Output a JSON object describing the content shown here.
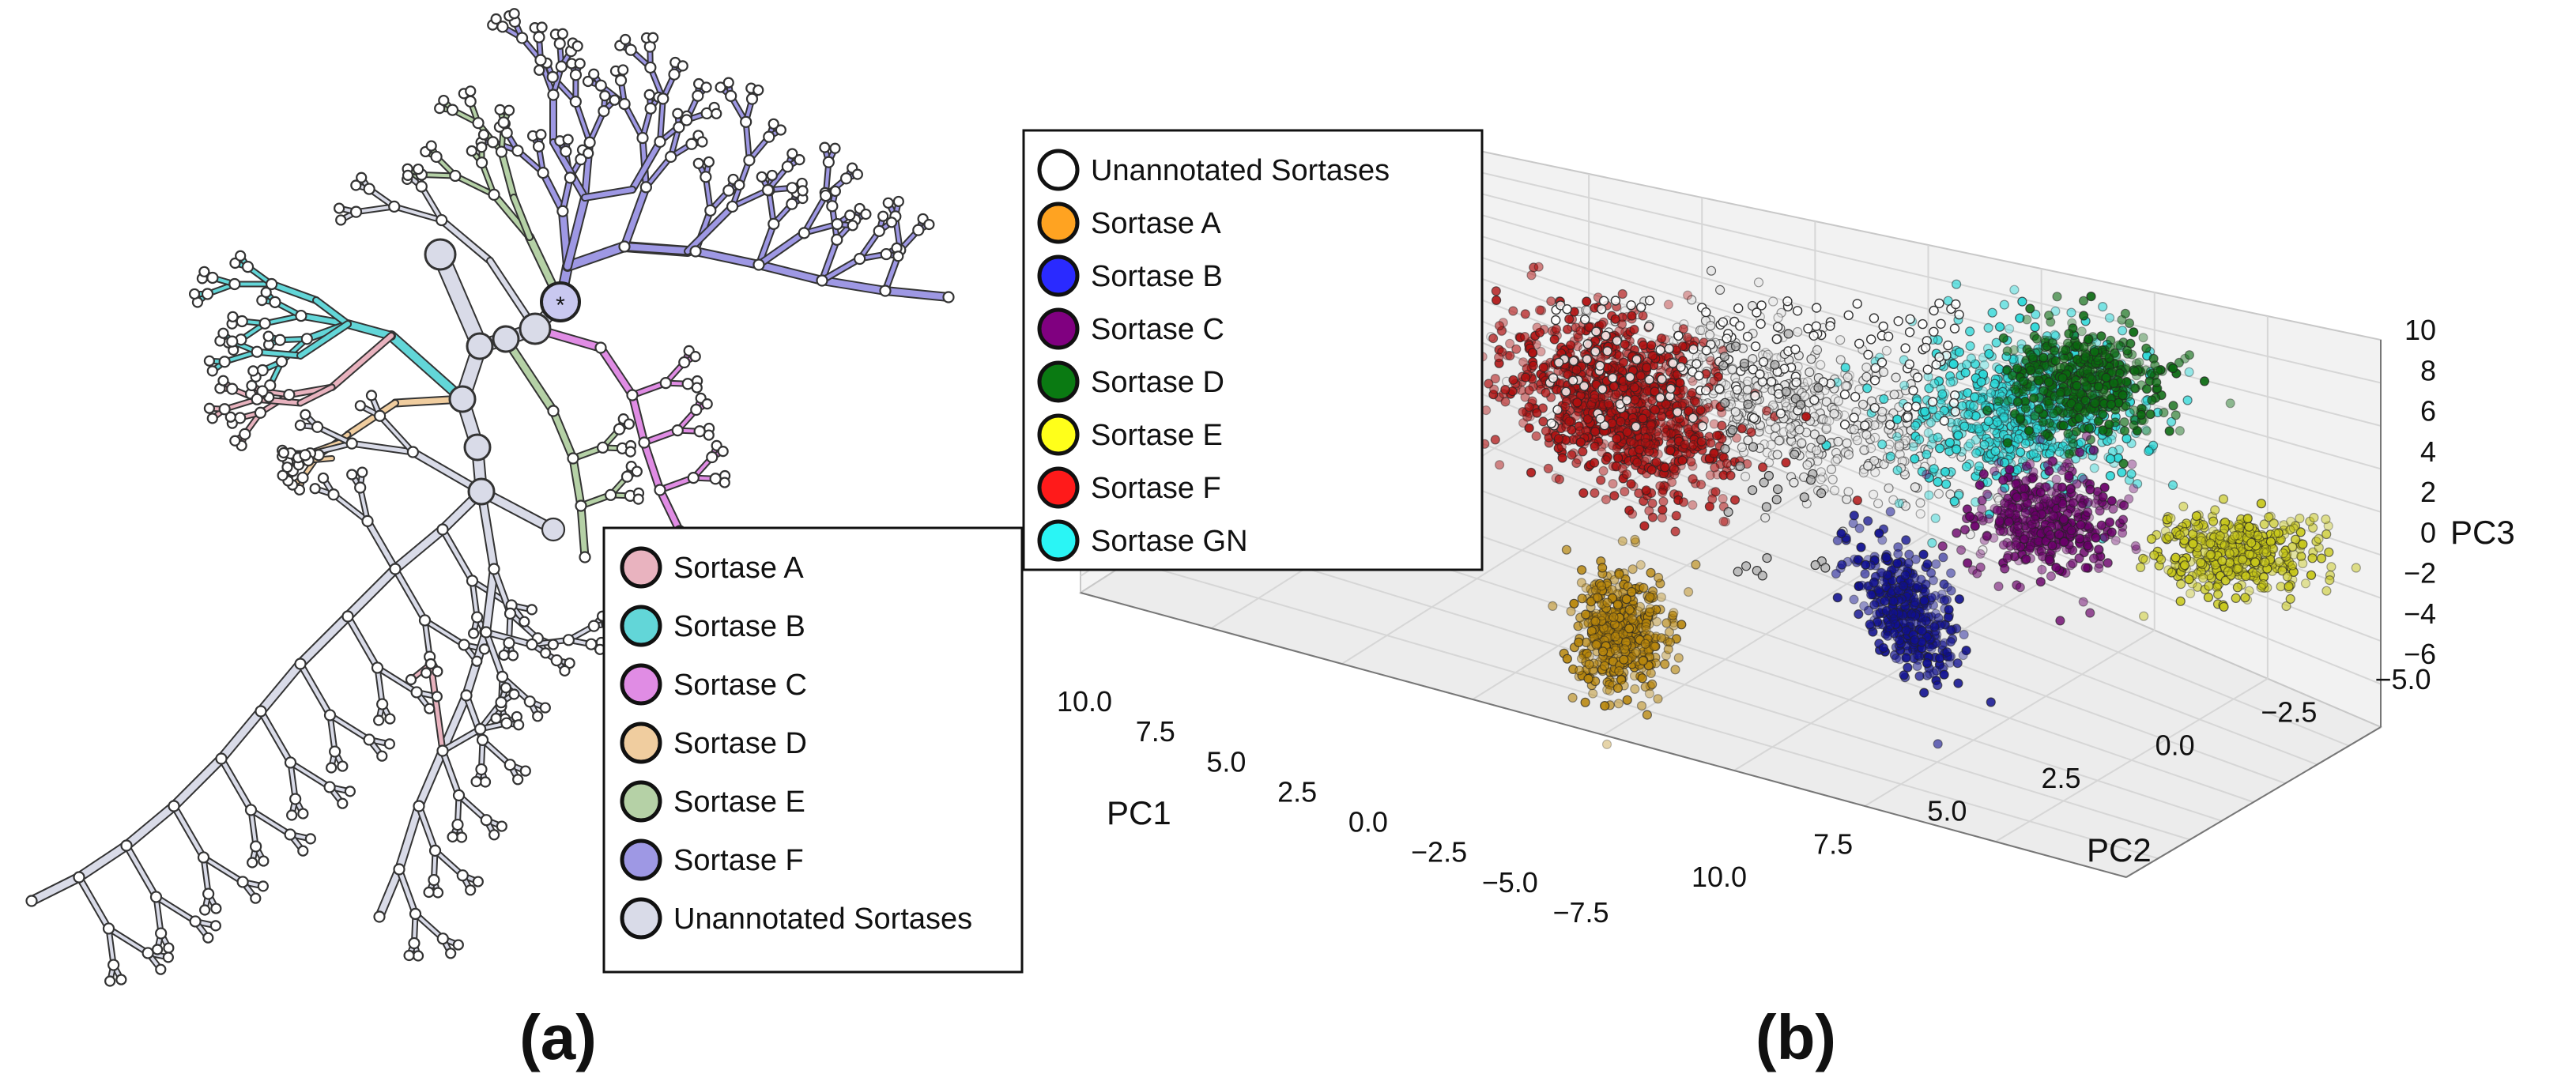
{
  "panels": {
    "a": {
      "label": "(a)"
    },
    "b": {
      "label": "(b)"
    }
  },
  "chart_data": [
    {
      "type": "tree",
      "panel": "(a)",
      "legend": [
        {
          "label": "Sortase A",
          "color": "#e9b3bf"
        },
        {
          "label": "Sortase B",
          "color": "#62d6d8"
        },
        {
          "label": "Sortase C",
          "color": "#e08ce4"
        },
        {
          "label": "Sortase D",
          "color": "#f0cd9f"
        },
        {
          "label": "Sortase E",
          "color": "#b5d1a6"
        },
        {
          "label": "Sortase F",
          "color": "#9e98e4"
        },
        {
          "label": "Unannotated Sortases",
          "color": "#d9dbe8"
        }
      ],
      "root_marker": "*"
    },
    {
      "type": "scatter3d",
      "panel": "(b)",
      "legend": [
        {
          "label": "Unannotated Sortases",
          "color": "#ffffff"
        },
        {
          "label": "Sortase A",
          "color": "#ffa321"
        },
        {
          "label": "Sortase B",
          "color": "#2a2aff"
        },
        {
          "label": "Sortase C",
          "color": "#800080"
        },
        {
          "label": "Sortase D",
          "color": "#0a7a12"
        },
        {
          "label": "Sortase E",
          "color": "#ffff1a"
        },
        {
          "label": "Sortase F",
          "color": "#ff1a1a"
        },
        {
          "label": "Sortase GN",
          "color": "#2af5f5"
        }
      ],
      "axes": {
        "x": {
          "label": "PC1",
          "ticks": [
            "10.0",
            "7.5",
            "5.0",
            "2.5",
            "0.0",
            "−2.5",
            "−5.0",
            "−7.5"
          ],
          "range": [
            10.0,
            -7.5
          ]
        },
        "y": {
          "label": "PC2",
          "ticks": [
            "10.0",
            "7.5",
            "5.0",
            "2.5",
            "0.0",
            "−2.5",
            "−5.0"
          ],
          "range": [
            10.0,
            -5.0
          ]
        },
        "z": {
          "label": "PC3",
          "ticks": [
            "10",
            "8",
            "6",
            "4",
            "2",
            "0",
            "−2",
            "−4",
            "−6"
          ],
          "range": [
            -6,
            10
          ]
        }
      },
      "clusters": [
        {
          "name": "Sortase F",
          "center": [
            7.5,
            6.0,
            5.0
          ],
          "points": 1300
        },
        {
          "name": "Unannotated Sortases",
          "center": [
            3.0,
            2.0,
            6.0
          ],
          "points": 900
        },
        {
          "name": "Sortase B",
          "center": [
            2.5,
            7.5,
            -3.0
          ],
          "points": 450
        },
        {
          "name": "Sortase A",
          "center": [
            -1.5,
            11.5,
            -3.0
          ],
          "points": 600
        },
        {
          "name": "Sortase C",
          "center": [
            -4.0,
            2.0,
            1.0
          ],
          "points": 500
        },
        {
          "name": "Sortase GN",
          "center": [
            -2.0,
            -3.0,
            6.5
          ],
          "points": 900
        },
        {
          "name": "Sortase D",
          "center": [
            -3.0,
            -4.5,
            8.5
          ],
          "points": 500
        },
        {
          "name": "Sortase E",
          "center": [
            -7.0,
            -1.0,
            0.0
          ],
          "points": 500
        }
      ]
    }
  ]
}
